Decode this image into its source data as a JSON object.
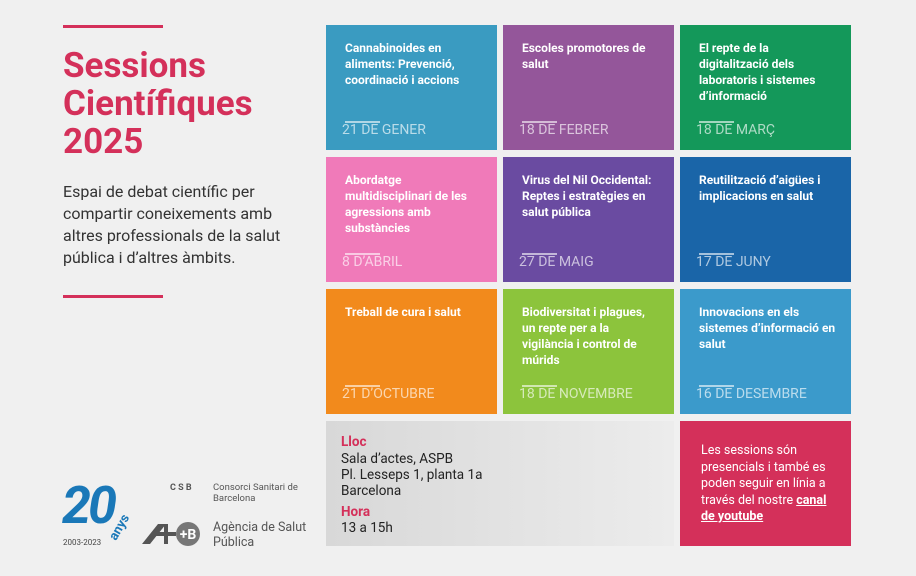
{
  "header": {
    "title_lines": [
      "Sessions",
      "Científiques",
      "2025"
    ],
    "description": "Espai de debat científic per compartir coneixements amb altres professionals de la salut pública i d’altres àmbits."
  },
  "sessions": [
    {
      "title": "Cannabinoides en aliments: Prevenció, coordinació i accions",
      "date": "21 DE GENER",
      "color": "#3a9bc1"
    },
    {
      "title": "Escoles promotores de salut",
      "date": "18 DE FEBRER",
      "color": "#94569a"
    },
    {
      "title": "El repte de la digitalització dels laboratoris i sistemes d’informació",
      "date": "18 DE MARÇ",
      "color": "#14985a"
    },
    {
      "title": "Abordatge multidisciplinari de les agressions amb substàncies",
      "date": "8 D’ABRIL",
      "color": "#f07ab9"
    },
    {
      "title": "Virus del Nil Occidental: Reptes i estratègies en salut pública",
      "date": "27 DE MAIG",
      "color": "#6a4ba1"
    },
    {
      "title": "Reutilització d’aigües i implicacions en salut",
      "date": "17 DE JUNY",
      "color": "#1a65a8"
    },
    {
      "title": "Treball de cura i salut",
      "date": "21 D’OCTUBRE",
      "color": "#f28a1c"
    },
    {
      "title": "Biodiversitat i plagues, un repte per a la vigilància i control de múrids",
      "date": "18 DE NOVEMBRE",
      "color": "#8cc43c"
    },
    {
      "title": "Innovacions en els sistemes d’informació en salut",
      "date": "16 DE DESEMBRE",
      "color": "#3b9acb"
    }
  ],
  "venue": {
    "label": "Lloc",
    "lines": [
      "Sala d’actes, ASPB",
      "Pl. Lesseps 1, planta 1a",
      "Barcelona"
    ]
  },
  "time": {
    "label": "Hora",
    "value": "13 a 15h"
  },
  "online": {
    "text": "Les sessions són presencials i també es poden seguir en línia a través del nostre",
    "link": "canal de youtube"
  },
  "logos": {
    "anniversary_number": "20",
    "anniversary_word": "anys",
    "anniversary_years": "2003-2023",
    "csb_acronym": "C S B",
    "csb_name": "Consorci Sanitari de Barcelona",
    "aspb_name": "Agència de Salut Pública",
    "aspb_mark": "+B"
  }
}
